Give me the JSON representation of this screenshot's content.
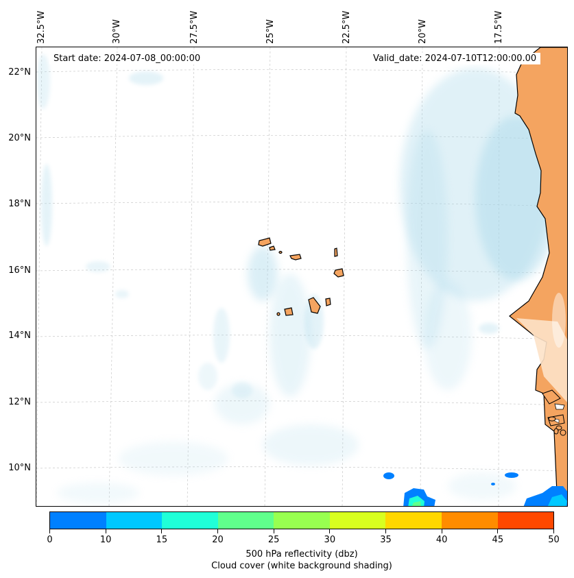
{
  "map": {
    "start_date_text": "Start date: 2024-07-08_00:00:00",
    "valid_date_text": "Valid_date: 2024-07-10T12:00:00.00",
    "longitude_labels": [
      "32.5°W",
      "30°W",
      "27.5°W",
      "25°W",
      "22.5°W",
      "20°W",
      "17.5°W"
    ],
    "latitude_labels": [
      "22°N",
      "20°N",
      "18°N",
      "16°N",
      "14°N",
      "12°N",
      "10°N"
    ],
    "land_color": "#f4a460",
    "cloud_color": "#a8d8ea"
  },
  "colorbar": {
    "ticks": [
      "0",
      "10",
      "15",
      "20",
      "25",
      "30",
      "35",
      "40",
      "45",
      "50"
    ],
    "colors": [
      "#0080ff",
      "#00c8ff",
      "#20ffd8",
      "#60ff8c",
      "#98ff50",
      "#d8ff20",
      "#ffd700",
      "#ff8c00",
      "#ff4800"
    ],
    "label_line1": "500 hPa reflectivity (dbz)",
    "label_line2": "Cloud cover (white background shading)"
  }
}
